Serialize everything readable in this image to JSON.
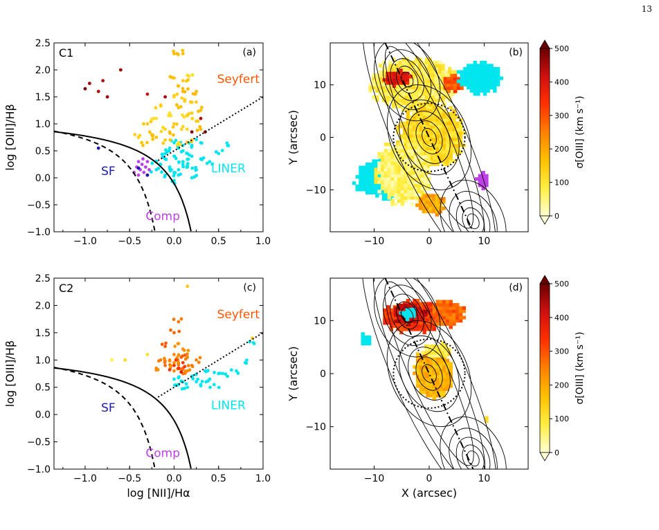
{
  "page": {
    "number": "13"
  },
  "colors": {
    "liner": "#00e5ee",
    "sf": "#1a1aa8",
    "comp": "#c040e8",
    "seyfert": "#ff5500",
    "cmap": [
      "#ffffd4",
      "#ffee40",
      "#ffc000",
      "#ff8000",
      "#ff3000",
      "#d01010",
      "#6a0000"
    ]
  },
  "chart_data": [
    {
      "panel": "a",
      "type": "scatter",
      "label": "C1",
      "panel_letter": "(a)",
      "xlabel": "",
      "ylabel": "log [OIII]/Hβ",
      "xlim": [
        -1.35,
        1.0
      ],
      "ylim": [
        -1.0,
        2.5
      ],
      "xticks": [
        "−1.0",
        "−0.5",
        "0.0",
        "0.5",
        "1.0"
      ],
      "yticks": [
        "−1.0",
        "−0.5",
        "0.0",
        "0.5",
        "1.0",
        "1.5",
        "2.0",
        "2.5"
      ],
      "region_labels": {
        "seyfert": "Seyfert",
        "liner": "LINER",
        "sf": "SF",
        "comp": "Comp"
      },
      "curves": [
        "Kewley (solid)",
        "Kauffmann (dashed)",
        "Seyfert/LINER divider (dotted)"
      ],
      "series": [
        {
          "class": "liner",
          "color": "#00e5ee",
          "points": [
            [
              -0.2,
              0.3
            ],
            [
              -0.15,
              0.25
            ],
            [
              -0.1,
              0.35
            ],
            [
              -0.05,
              0.2
            ],
            [
              0.0,
              0.4
            ],
            [
              0.05,
              0.15
            ],
            [
              0.1,
              0.3
            ],
            [
              0.15,
              0.45
            ],
            [
              -0.1,
              0.05
            ],
            [
              0.0,
              0.1
            ],
            [
              0.1,
              0.5
            ],
            [
              0.2,
              0.6
            ],
            [
              0.3,
              0.35
            ],
            [
              -0.05,
              0.55
            ],
            [
              0.05,
              0.05
            ],
            [
              0.15,
              0.2
            ],
            [
              0.25,
              0.15
            ],
            [
              0.4,
              0.3
            ],
            [
              0.5,
              0.45
            ],
            [
              0.2,
              0.0
            ],
            [
              0.0,
              -0.05
            ],
            [
              -0.1,
              0.45
            ],
            [
              0.1,
              0.6
            ],
            [
              0.3,
              0.65
            ],
            [
              0.6,
              0.6
            ],
            [
              0.1,
              0.25
            ],
            [
              -0.2,
              0.15
            ],
            [
              0.0,
              0.65
            ],
            [
              0.2,
              0.4
            ]
          ]
        },
        {
          "class": "comp",
          "color": "#c040e8",
          "points": [
            [
              -0.45,
              0.1
            ],
            [
              -0.42,
              0.2
            ],
            [
              -0.4,
              0.05
            ],
            [
              -0.38,
              0.15
            ],
            [
              -0.36,
              0.25
            ],
            [
              -0.34,
              0.1
            ],
            [
              -0.32,
              0.2
            ],
            [
              -0.3,
              0.3
            ],
            [
              -0.28,
              0.15
            ],
            [
              -0.4,
              0.3
            ],
            [
              -0.35,
              0.35
            ],
            [
              -0.3,
              0.05
            ]
          ]
        },
        {
          "class": "sf",
          "color": "#1a1aa8",
          "points": [
            [
              -0.85,
              0.55
            ],
            [
              -0.4,
              0.18
            ],
            [
              -0.3,
              0.05
            ]
          ]
        },
        {
          "class": "agn",
          "color_value": 150,
          "points": [
            [
              -0.3,
              1.0
            ],
            [
              -0.2,
              1.1
            ],
            [
              -0.1,
              0.9
            ],
            [
              -0.05,
              1.2
            ],
            [
              0.0,
              1.0
            ],
            [
              0.05,
              1.3
            ],
            [
              0.1,
              0.95
            ],
            [
              0.15,
              1.15
            ],
            [
              0.2,
              1.4
            ],
            [
              0.25,
              1.05
            ],
            [
              0.1,
              1.6
            ],
            [
              0.0,
              1.5
            ],
            [
              0.1,
              1.8
            ],
            [
              0.15,
              1.9
            ],
            [
              0.0,
              2.3
            ],
            [
              0.1,
              2.3
            ],
            [
              -0.2,
              0.75
            ],
            [
              -0.1,
              0.7
            ],
            [
              0.05,
              0.65
            ],
            [
              -0.25,
              0.8
            ],
            [
              0.3,
              0.9
            ],
            [
              0.2,
              0.7
            ],
            [
              -0.15,
              1.35
            ],
            [
              0.05,
              1.7
            ],
            [
              0.2,
              1.2
            ],
            [
              -0.05,
              0.85
            ],
            [
              0.12,
              1.45
            ],
            [
              -0.35,
              0.6
            ],
            [
              0.25,
              1.6
            ],
            [
              0.3,
              1.25
            ],
            [
              -0.4,
              0.75
            ],
            [
              0.0,
              1.85
            ]
          ]
        },
        {
          "class": "agn-high",
          "color_value": 450,
          "points": [
            [
              -1.0,
              1.65
            ],
            [
              -0.95,
              1.75
            ],
            [
              -0.85,
              1.6
            ],
            [
              -0.8,
              1.8
            ],
            [
              -0.75,
              1.5
            ],
            [
              -0.6,
              2.0
            ],
            [
              -0.3,
              1.55
            ],
            [
              0.3,
              1.1
            ],
            [
              0.2,
              0.85
            ],
            [
              0.35,
              0.85
            ],
            [
              -0.1,
              1.5
            ]
          ]
        }
      ]
    },
    {
      "panel": "b",
      "type": "heatmap",
      "panel_letter": "(b)",
      "xlabel": "",
      "ylabel": "Y (arcsec)",
      "xlim": [
        -18,
        18
      ],
      "ylim": [
        -18,
        18
      ],
      "xticks": [
        "−10",
        "0",
        "10"
      ],
      "yticks": [
        "−10",
        "0",
        "10"
      ],
      "colorbar": {
        "label": "σ[OIII] (km s⁻¹)",
        "ticks": [
          "0",
          "100",
          "200",
          "300",
          "400",
          "500"
        ],
        "range": [
          0,
          500
        ]
      },
      "regions": [
        {
          "class": "liner",
          "color": "#00e5ee",
          "x": -4,
          "y": 10,
          "rx": 5,
          "ry": 3
        },
        {
          "class": "agn",
          "color_value": 80,
          "x": -3,
          "y": 10,
          "rx": 8,
          "ry": 5
        },
        {
          "class": "agn",
          "color_value": 380,
          "x": -6,
          "y": 11,
          "rx": 2.5,
          "ry": 1.5
        },
        {
          "class": "agn",
          "color_value": 300,
          "x": 4,
          "y": 10,
          "rx": 2,
          "ry": 1.5
        },
        {
          "class": "liner",
          "color": "#00e5ee",
          "x": 9,
          "y": 11,
          "rx": 4,
          "ry": 3
        },
        {
          "class": "agn",
          "color_value": 120,
          "x": 0,
          "y": 0,
          "rx": 6,
          "ry": 6
        },
        {
          "class": "liner",
          "color": "#00e5ee",
          "x": -8,
          "y": -8,
          "rx": 6,
          "ry": 4
        },
        {
          "class": "agn",
          "color_value": 60,
          "x": -5,
          "y": -7,
          "rx": 5,
          "ry": 6
        },
        {
          "class": "agn",
          "color_value": 200,
          "x": 0,
          "y": -13,
          "rx": 2.5,
          "ry": 2
        },
        {
          "class": "comp",
          "color": "#c040e8",
          "x": 9.5,
          "y": -8.5,
          "rx": 1.2,
          "ry": 1.5
        }
      ],
      "contour_peaks": [
        [
          -4,
          11
        ],
        [
          0,
          0
        ],
        [
          8,
          -16
        ]
      ],
      "circle": {
        "x": 0,
        "y": 0,
        "r": 6.5
      },
      "axis_line": [
        [
          -8,
          18
        ],
        [
          8,
          -18
        ]
      ]
    },
    {
      "panel": "c",
      "type": "scatter",
      "label": "C2",
      "panel_letter": "(c)",
      "xlabel": "log [NII]/Hα",
      "ylabel": "log [OIII]/Hβ",
      "xlim": [
        -1.35,
        1.0
      ],
      "ylim": [
        -1.0,
        2.5
      ],
      "xticks": [
        "−1.0",
        "−0.5",
        "0.0",
        "0.5",
        "1.0"
      ],
      "yticks": [
        "−1.0",
        "−0.5",
        "0.0",
        "0.5",
        "1.0",
        "1.5",
        "2.0",
        "2.5"
      ],
      "region_labels": {
        "seyfert": "Seyfert",
        "liner": "LINER",
        "sf": "SF",
        "comp": "Comp"
      },
      "series": [
        {
          "class": "liner",
          "color": "#00e5ee",
          "points": [
            [
              0.0,
              0.65
            ],
            [
              0.1,
              0.6
            ],
            [
              0.2,
              0.7
            ],
            [
              0.3,
              0.55
            ],
            [
              0.4,
              0.65
            ],
            [
              0.5,
              0.75
            ],
            [
              0.15,
              0.5
            ],
            [
              0.25,
              0.6
            ],
            [
              0.35,
              0.8
            ],
            [
              0.05,
              0.55
            ],
            [
              0.6,
              0.7
            ],
            [
              0.7,
              0.8
            ],
            [
              0.8,
              0.95
            ],
            [
              0.9,
              1.3
            ],
            [
              0.45,
              0.55
            ]
          ]
        },
        {
          "class": "agn",
          "color_value": 250,
          "points": [
            [
              -0.1,
              0.9
            ],
            [
              -0.05,
              1.0
            ],
            [
              0.0,
              1.1
            ],
            [
              0.05,
              0.95
            ],
            [
              0.1,
              0.85
            ],
            [
              0.15,
              1.05
            ],
            [
              0.0,
              0.8
            ],
            [
              0.1,
              1.2
            ],
            [
              0.05,
              1.3
            ],
            [
              -0.1,
              1.25
            ],
            [
              0.2,
              0.9
            ],
            [
              -0.15,
              1.0
            ],
            [
              0.1,
              0.75
            ],
            [
              0.0,
              1.5
            ],
            [
              0.05,
              1.7
            ],
            [
              -0.2,
              0.85
            ],
            [
              0.15,
              0.8
            ],
            [
              0.25,
              1.0
            ],
            [
              0.0,
              0.95
            ],
            [
              0.08,
              1.05
            ]
          ]
        },
        {
          "class": "agn-high",
          "color_value": 350,
          "points": [
            [
              0.0,
              0.9
            ],
            [
              0.05,
              0.85
            ],
            [
              0.1,
              0.95
            ],
            [
              0.02,
              1.0
            ],
            [
              0.12,
              0.88
            ],
            [
              -0.05,
              0.82
            ],
            [
              0.08,
              0.78
            ]
          ]
        },
        {
          "class": "agn-low",
          "color_value": 120,
          "points": [
            [
              -0.55,
              1.0
            ],
            [
              -0.3,
              1.1
            ],
            [
              0.15,
              2.35
            ],
            [
              0.88,
              1.4
            ],
            [
              -0.7,
              1.0
            ]
          ]
        }
      ]
    },
    {
      "panel": "d",
      "type": "heatmap",
      "panel_letter": "(d)",
      "xlabel": "X (arcsec)",
      "ylabel": "Y (arcsec)",
      "xlim": [
        -18,
        18
      ],
      "ylim": [
        -18,
        18
      ],
      "xticks": [
        "−10",
        "0",
        "10"
      ],
      "yticks": [
        "−10",
        "0",
        "10"
      ],
      "colorbar": {
        "label": "σ[OIII] (km s⁻¹)",
        "ticks": [
          "0",
          "100",
          "200",
          "300",
          "400",
          "500"
        ],
        "range": [
          0,
          500
        ]
      },
      "regions": [
        {
          "class": "agn",
          "color_value": 330,
          "x": -3,
          "y": 10.5,
          "rx": 6,
          "ry": 3
        },
        {
          "class": "agn",
          "color_value": 420,
          "x": -4,
          "y": 11,
          "rx": 3,
          "ry": 2
        },
        {
          "class": "agn",
          "color_value": 280,
          "x": 3,
          "y": 11,
          "rx": 3,
          "ry": 2.5
        },
        {
          "class": "liner",
          "color": "#00e5ee",
          "x": -4,
          "y": 11,
          "rx": 1.5,
          "ry": 1
        },
        {
          "class": "liner",
          "color": "#00e5ee",
          "x": -12,
          "y": 6,
          "rx": 1,
          "ry": 1.2
        },
        {
          "class": "agn",
          "color_value": 180,
          "x": 0.5,
          "y": 0,
          "rx": 3.5,
          "ry": 5
        },
        {
          "class": "agn",
          "color_value": 80,
          "x": 1,
          "y": 4,
          "rx": 2.5,
          "ry": 1.5
        },
        {
          "class": "agn",
          "color_value": 100,
          "x": 10,
          "y": -9,
          "rx": 0.5,
          "ry": 0.8
        }
      ],
      "contour_peaks": [
        [
          -4,
          11
        ],
        [
          0,
          0
        ],
        [
          8,
          -16
        ]
      ],
      "circle": {
        "x": 0,
        "y": 0,
        "r": 6.5
      },
      "axis_line": [
        [
          -8,
          18
        ],
        [
          8,
          -18
        ]
      ]
    }
  ]
}
